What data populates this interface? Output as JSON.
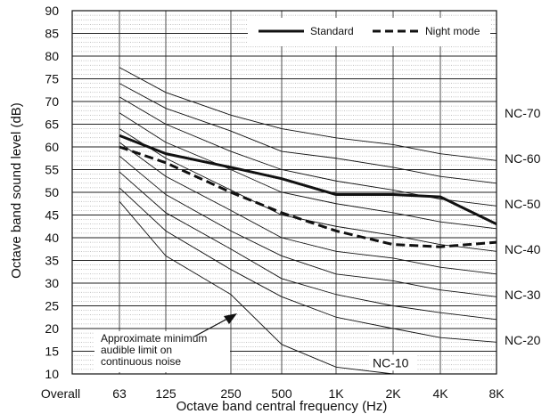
{
  "chart_data": {
    "type": "line",
    "xlabel": "Octave band central frequency (Hz)",
    "ylabel": "Octave band sound level (dB)",
    "x_categories": [
      "Overall",
      "63",
      "125",
      "250",
      "500",
      "1K",
      "2K",
      "4K",
      "8K"
    ],
    "y_ticks": [
      10,
      15,
      20,
      25,
      30,
      35,
      40,
      45,
      50,
      55,
      60,
      65,
      70,
      75,
      80,
      85,
      90
    ],
    "ylim": [
      10,
      90
    ],
    "grid": "minor horizontal every 1 dB, major every 5 dB, vertical at each band",
    "legend": "top-right",
    "series": [
      {
        "name": "Standard",
        "style": "solid-thick",
        "color": "#111111",
        "x": [
          "63",
          "125",
          "250",
          "500",
          "1K",
          "2K",
          "4K",
          "8K"
        ],
        "values": [
          62.5,
          58.5,
          55.5,
          53,
          49.5,
          49.5,
          49,
          43
        ]
      },
      {
        "name": "Night mode",
        "style": "dashed-thick",
        "color": "#111111",
        "x": [
          "63",
          "125",
          "250",
          "500",
          "1K",
          "2K",
          "4K",
          "8K"
        ],
        "values": [
          60,
          56.5,
          50,
          45.5,
          41.5,
          38.5,
          38,
          39
        ]
      }
    ],
    "nc_curves": [
      {
        "values": [
          77.5,
          72,
          67,
          64,
          62,
          60.5,
          58.5,
          57
        ]
      },
      {
        "values": [
          74,
          68.5,
          63.5,
          59,
          57.5,
          55.5,
          53.5,
          52
        ]
      },
      {
        "values": [
          71,
          65,
          59,
          55,
          52.5,
          50.5,
          48.5,
          47
        ]
      },
      {
        "values": [
          67.5,
          61,
          55,
          50,
          47.5,
          45.5,
          43.5,
          42
        ]
      },
      {
        "values": [
          64,
          57.5,
          50.5,
          45,
          42.5,
          40.5,
          38.5,
          37
        ]
      },
      {
        "values": [
          61,
          53.5,
          46,
          40,
          37,
          35.5,
          33.5,
          32
        ]
      },
      {
        "values": [
          58,
          49.5,
          41.5,
          36,
          32,
          30.5,
          28.5,
          27
        ]
      },
      {
        "values": [
          54.5,
          45.5,
          37.5,
          31,
          27.5,
          25,
          23.5,
          22
        ]
      },
      {
        "values": [
          51,
          41.5,
          33,
          27,
          22.5,
          20,
          18,
          17
        ]
      },
      {
        "values": [
          48,
          36,
          27.5,
          16.5,
          11.5,
          10
        ]
      }
    ],
    "nc_labels": [
      {
        "text": "NC-70",
        "y": 67.5
      },
      {
        "text": "NC-60",
        "y": 57.5
      },
      {
        "text": "NC-50",
        "y": 47.5
      },
      {
        "text": "NC-40",
        "y": 37.5
      },
      {
        "text": "NC-30",
        "y": 27.5
      },
      {
        "text": "NC-20",
        "y": 17.5
      },
      {
        "text": "NC-10",
        "y": 12.5
      }
    ],
    "annotation": {
      "lines": [
        "Approximate minimum",
        "audible limit on",
        "continuous noise"
      ]
    }
  }
}
